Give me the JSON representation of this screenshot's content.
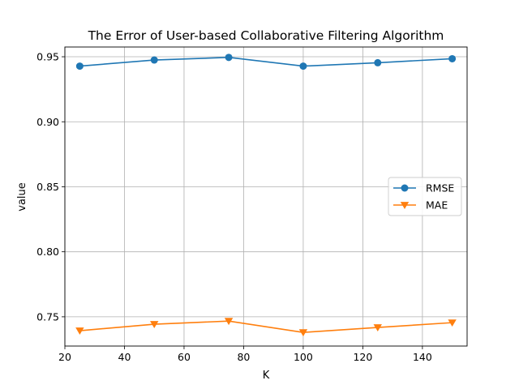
{
  "chart_data": {
    "type": "line",
    "title": "The Error of User-based Collaborative Filtering Algorithm",
    "xlabel": "K",
    "ylabel": "value",
    "x": [
      25,
      50,
      75,
      100,
      125,
      150
    ],
    "xlim": [
      20,
      155
    ],
    "ylim": [
      0.7275,
      0.9575
    ],
    "xticks": [
      20,
      40,
      60,
      80,
      100,
      120,
      140
    ],
    "xtick_labels": [
      "20",
      "40",
      "60",
      "80",
      "100",
      "120",
      "140"
    ],
    "yticks": [
      0.75,
      0.8,
      0.85,
      0.9,
      0.95
    ],
    "ytick_labels": [
      "0.75",
      "0.80",
      "0.85",
      "0.90",
      "0.95"
    ],
    "grid": true,
    "legend_position": "center-right",
    "series": [
      {
        "name": "RMSE",
        "values": [
          0.9428,
          0.9475,
          0.9495,
          0.9428,
          0.9454,
          0.9485
        ],
        "color": "#1f77b4",
        "marker": "circle"
      },
      {
        "name": "MAE",
        "values": [
          0.7393,
          0.7443,
          0.7467,
          0.738,
          0.7418,
          0.7455
        ],
        "color": "#ff7f0e",
        "marker": "triangle-down"
      }
    ]
  }
}
